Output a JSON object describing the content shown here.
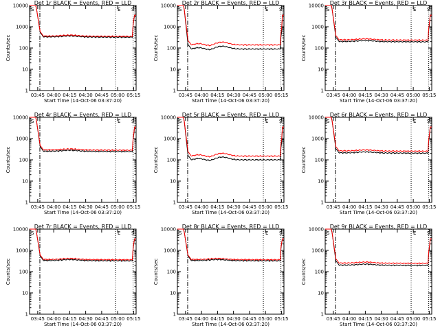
{
  "chart_data": [
    {
      "type": "line",
      "title": "Det 1r BLACK = Events, RED = LLD",
      "xlabel": "Start Time (14-Oct-06 03:37:20)",
      "ylabel": "Counts/sec",
      "yscale": "log",
      "ylim": [
        1,
        10000
      ],
      "x_tick_labels": [
        "03:45",
        "04:00",
        "04:15",
        "04:30",
        "04:45",
        "05:00",
        "05:15"
      ],
      "y_tick_labels": [
        "1",
        "10",
        "100",
        "1000",
        "10000"
      ],
      "markers": [
        "S",
        "E",
        "S"
      ],
      "series": [
        {
          "color": "#000000",
          "plateau": 330,
          "variant": "flat"
        },
        {
          "color": "#ff0000",
          "plateau": 360,
          "variant": "flat"
        }
      ]
    },
    {
      "type": "line",
      "title": "Det 2r BLACK = Events, RED = LLD",
      "xlabel": "Start Time (14-Oct-06 03:37:20)",
      "ylabel": "Counts/sec",
      "yscale": "log",
      "ylim": [
        1,
        10000
      ],
      "x_tick_labels": [
        "03:45",
        "04:00",
        "04:15",
        "04:30",
        "04:45",
        "05:00",
        "05:15"
      ],
      "y_tick_labels": [
        "1",
        "10",
        "100",
        "1000",
        "10000"
      ],
      "markers": [
        "S",
        "E",
        "S"
      ],
      "series": [
        {
          "color": "#000000",
          "plateau": 90,
          "variant": "hump"
        },
        {
          "color": "#ff0000",
          "plateau": 140,
          "variant": "hump"
        }
      ]
    },
    {
      "type": "line",
      "title": "Det 3r BLACK = Events, RED = LLD",
      "xlabel": "Start Time (14-Oct-06 03:37:20)",
      "ylabel": "Counts/sec",
      "yscale": "log",
      "ylim": [
        1,
        10000
      ],
      "x_tick_labels": [
        "03:45",
        "04:00",
        "04:15",
        "04:30",
        "04:45",
        "05:00",
        "05:15"
      ],
      "y_tick_labels": [
        "1",
        "10",
        "100",
        "1000",
        "10000"
      ],
      "markers": [
        "S",
        "E",
        "S"
      ],
      "series": [
        {
          "color": "#000000",
          "plateau": 200,
          "variant": "flat"
        },
        {
          "color": "#ff0000",
          "plateau": 240,
          "variant": "flat"
        }
      ]
    },
    {
      "type": "line",
      "title": "Det 4r BLACK = Events, RED = LLD",
      "xlabel": "Start Time (14-Oct-06 03:37:20)",
      "ylabel": "Counts/sec",
      "yscale": "log",
      "ylim": [
        1,
        10000
      ],
      "x_tick_labels": [
        "03:45",
        "04:00",
        "04:15",
        "04:30",
        "04:45",
        "05:00",
        "05:15"
      ],
      "y_tick_labels": [
        "1",
        "10",
        "100",
        "1000",
        "10000"
      ],
      "markers": [
        "S",
        "E",
        "S"
      ],
      "series": [
        {
          "color": "#000000",
          "plateau": 250,
          "variant": "flat"
        },
        {
          "color": "#ff0000",
          "plateau": 290,
          "variant": "flat"
        }
      ]
    },
    {
      "type": "line",
      "title": "Det 5r BLACK = Events, RED = LLD",
      "xlabel": "Start Time (14-Oct-06 03:37:20)",
      "ylabel": "Counts/sec",
      "yscale": "log",
      "ylim": [
        1,
        10000
      ],
      "x_tick_labels": [
        "03:45",
        "04:00",
        "04:15",
        "04:30",
        "04:45",
        "05:00",
        "05:15"
      ],
      "y_tick_labels": [
        "1",
        "10",
        "100",
        "1000",
        "10000"
      ],
      "markers": [
        "S",
        "E",
        "S"
      ],
      "series": [
        {
          "color": "#000000",
          "plateau": 100,
          "variant": "hump"
        },
        {
          "color": "#ff0000",
          "plateau": 150,
          "variant": "hump"
        }
      ]
    },
    {
      "type": "line",
      "title": "Det 6r BLACK = Events, RED = LLD",
      "xlabel": "Start Time (14-Oct-06 03:37:20)",
      "ylabel": "Counts/sec",
      "yscale": "log",
      "ylim": [
        1,
        10000
      ],
      "x_tick_labels": [
        "03:45",
        "04:00",
        "04:15",
        "04:30",
        "04:45",
        "05:00",
        "05:15"
      ],
      "y_tick_labels": [
        "1",
        "10",
        "100",
        "1000",
        "10000"
      ],
      "markers": [
        "S",
        "E",
        "S"
      ],
      "series": [
        {
          "color": "#000000",
          "plateau": 210,
          "variant": "flat"
        },
        {
          "color": "#ff0000",
          "plateau": 260,
          "variant": "flat"
        }
      ]
    },
    {
      "type": "line",
      "title": "Det 7r BLACK = Events, RED = LLD",
      "xlabel": "Start Time (14-Oct-06 03:37:20)",
      "ylabel": "Counts/sec",
      "yscale": "log",
      "ylim": [
        1,
        10000
      ],
      "x_tick_labels": [
        "03:45",
        "04:00",
        "04:15",
        "04:30",
        "04:45",
        "05:00",
        "05:15"
      ],
      "y_tick_labels": [
        "1",
        "10",
        "100",
        "1000",
        "10000"
      ],
      "markers": [
        "S",
        "E",
        "S"
      ],
      "series": [
        {
          "color": "#000000",
          "plateau": 330,
          "variant": "flat"
        },
        {
          "color": "#ff0000",
          "plateau": 370,
          "variant": "flat"
        }
      ]
    },
    {
      "type": "line",
      "title": "Det 8r BLACK = Events, RED = LLD",
      "xlabel": "Start Time (14-Oct-06 03:37:20)",
      "ylabel": "Counts/sec",
      "yscale": "log",
      "ylim": [
        1,
        10000
      ],
      "x_tick_labels": [
        "03:45",
        "04:00",
        "04:15",
        "04:30",
        "04:45",
        "05:00",
        "05:15"
      ],
      "y_tick_labels": [
        "1",
        "10",
        "100",
        "1000",
        "10000"
      ],
      "markers": [
        "S",
        "E",
        "S"
      ],
      "series": [
        {
          "color": "#000000",
          "plateau": 330,
          "variant": "flat"
        },
        {
          "color": "#ff0000",
          "plateau": 370,
          "variant": "flat"
        }
      ]
    },
    {
      "type": "line",
      "title": "Det 9r BLACK = Events, RED = LLD",
      "xlabel": "Start Time (14-Oct-06 03:37:20)",
      "ylabel": "Counts/sec",
      "yscale": "log",
      "ylim": [
        1,
        10000
      ],
      "x_tick_labels": [
        "03:45",
        "04:00",
        "04:15",
        "04:30",
        "04:45",
        "05:00",
        "05:15"
      ],
      "y_tick_labels": [
        "1",
        "10",
        "100",
        "1000",
        "10000"
      ],
      "markers": [
        "S",
        "E",
        "S"
      ],
      "series": [
        {
          "color": "#000000",
          "plateau": 200,
          "variant": "flat"
        },
        {
          "color": "#ff0000",
          "plateau": 250,
          "variant": "flat"
        }
      ]
    }
  ]
}
